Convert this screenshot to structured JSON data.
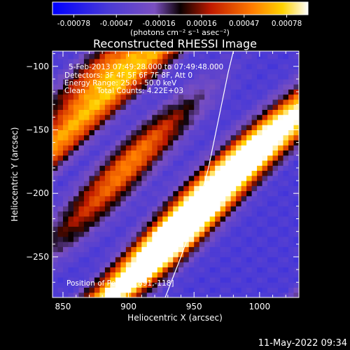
{
  "chart_data": {
    "type": "heatmap",
    "title": "Reconstructed RHESSI Image",
    "xlabel": "Heliocentric X (arcsec)",
    "ylabel": "Heliocentric Y (arcsec)",
    "xlim": [
      842,
      1030
    ],
    "ylim": [
      -282,
      -88
    ],
    "x_ticks": [
      850,
      900,
      950,
      1000
    ],
    "y_ticks": [
      -100,
      -150,
      -200,
      -250
    ],
    "colorbar": {
      "ticks": [
        "-0.00078",
        "-0.00047",
        "-0.00016",
        "0.00016",
        "0.00047",
        "0.00078"
      ],
      "range": [
        -0.00078,
        0.00078
      ],
      "unit_label": "(photons cm⁻² s⁻¹ asec⁻²)"
    },
    "annotations": [
      "5-Feb-2013 07:49:28.000 to 07:49:48.000",
      "Detectors: 3F 4F 5F 6F 7F 8F, Att 0",
      "Energy Range: 25.0 - 50.0 keV",
      "Clean     Total Counts: 4.22E+03",
      "Position of Peak = [891,-118]"
    ],
    "limb_curve": [
      [
        928,
        -282
      ],
      [
        940,
        -250
      ],
      [
        952,
        -215
      ],
      [
        961,
        -180
      ],
      [
        969,
        -140
      ],
      [
        976,
        -105
      ],
      [
        980,
        -88
      ]
    ],
    "bands": [
      {
        "x_center": 880,
        "y_center": -100,
        "amp": 0.00075
      },
      {
        "x_center": 910,
        "y_center": -165,
        "amp": 0.00072
      },
      {
        "x_center": 955,
        "y_center": -200,
        "amp": 0.0007
      },
      {
        "x_center": 930,
        "y_center": -245,
        "amp": 0.00078
      },
      {
        "x_center": 1005,
        "y_center": -150,
        "amp": 0.0006
      },
      {
        "x_center": 870,
        "y_center": -215,
        "amp": 0.00045
      }
    ],
    "colors": {
      "background": "#000000",
      "text": "#ffffff"
    }
  },
  "footer": {
    "timestamp": "11-May-2022 09:34"
  }
}
